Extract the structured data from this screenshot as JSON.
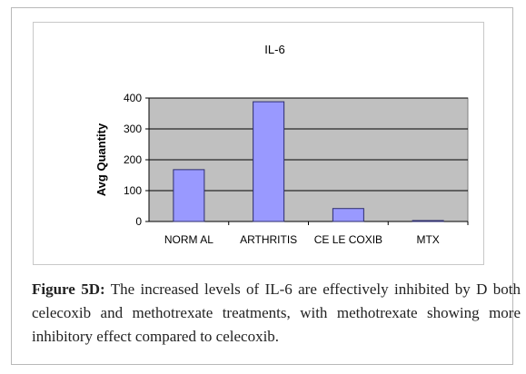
{
  "chart_data": {
    "type": "bar",
    "title": "IL-6",
    "xlabel": "",
    "ylabel": "Avg Quantity",
    "categories": [
      "NORM AL",
      "ARTHRITIS",
      "CE LE COXIB",
      "MTX"
    ],
    "values": [
      168,
      388,
      42,
      3
    ],
    "ylim": [
      0,
      400
    ],
    "yticks": [
      "0",
      "100",
      "200",
      "300",
      "400"
    ],
    "grid": true,
    "legend": "none",
    "colors": {
      "bar_fill": "#9999ff",
      "bar_stroke": "#2d2d6e",
      "plot_bg": "#c0c0c0",
      "gridline": "#000000"
    }
  },
  "caption": {
    "label": "Figure 5D:",
    "text": " The increased levels of IL-6 are effectively inhibited by D both celecoxib and methotrexate treatments, with methotrexate showing more inhibitory effect compared to celecoxib."
  }
}
